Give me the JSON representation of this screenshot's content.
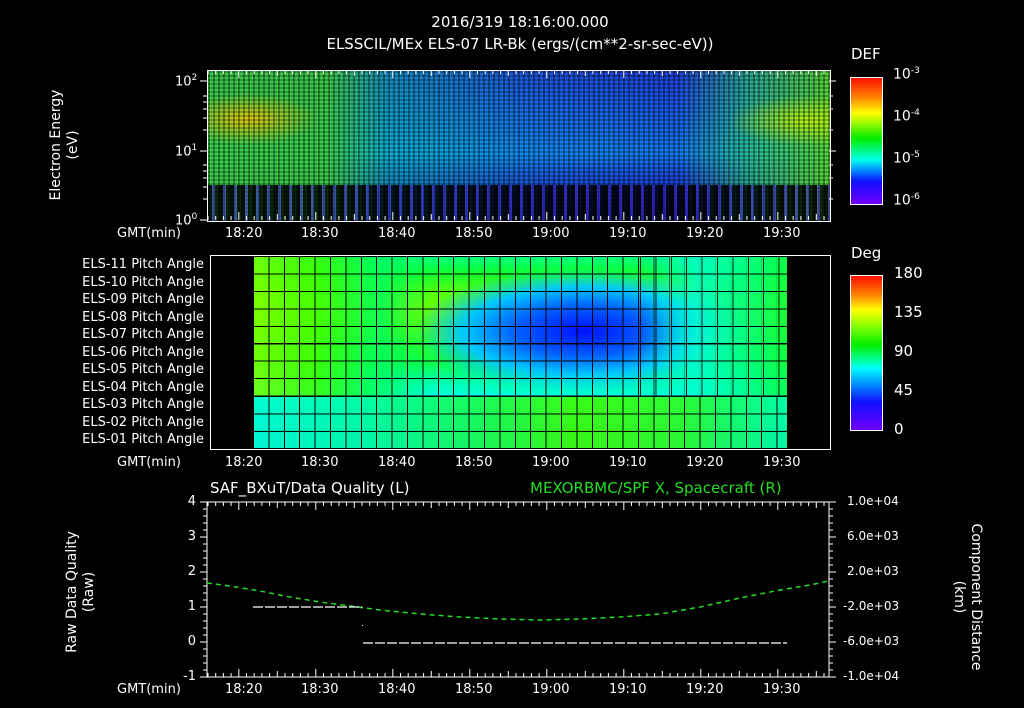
{
  "header": {
    "timestamp": "2016/319 18:16:00.000",
    "subtitle": "ELSSCIL/MEx ELS-07 LR-Bk  (ergs/(cm**2-sr-sec-eV))"
  },
  "panel1": {
    "ylabel_line1": "Electron Energy",
    "ylabel_line2": "(eV)",
    "yticks": [
      "10^0",
      "10^1",
      "10^2"
    ],
    "xlabel": "GMT(min)",
    "xticks": [
      "18:20",
      "18:30",
      "18:40",
      "18:50",
      "19:00",
      "19:10",
      "19:20",
      "19:30"
    ],
    "colorbar": {
      "title": "DEF",
      "ticks": [
        "10^-3",
        "10^-4",
        "10^-5",
        "10^-6"
      ]
    }
  },
  "panel2": {
    "rows": [
      "ELS-11 Pitch Angle",
      "ELS-10 Pitch Angle",
      "ELS-09 Pitch Angle",
      "ELS-08 Pitch Angle",
      "ELS-07 Pitch Angle",
      "ELS-06 Pitch Angle",
      "ELS-05 Pitch Angle",
      "ELS-04 Pitch Angle",
      "ELS-03 Pitch Angle",
      "ELS-02 Pitch Angle",
      "ELS-01 Pitch Angle"
    ],
    "xlabel": "GMT(min)",
    "xticks": [
      "18:20",
      "18:30",
      "18:40",
      "18:50",
      "19:00",
      "19:10",
      "19:20",
      "19:30"
    ],
    "colorbar": {
      "title": "Deg",
      "ticks": [
        "180",
        "135",
        "90",
        "45",
        "0"
      ]
    }
  },
  "panel3": {
    "title_left": "SAF_BXuT/Data Quality (L)",
    "title_right": "MEXORBMC/SPF X, Spacecraft (R)",
    "ylabel_left_line1": "Raw Data Quality",
    "ylabel_left_line2": "(Raw)",
    "ylabel_right_line1": "Component Distance",
    "ylabel_right_line2": "(km)",
    "yticks_left": [
      "4",
      "3",
      "2",
      "1",
      "0",
      "-1"
    ],
    "yticks_right": [
      "1.0e+04",
      "6.0e+03",
      "2.0e+03",
      "-2.0e+03",
      "-6.0e+03",
      "-1.0e+04"
    ],
    "xlabel": "GMT(min)",
    "xticks": [
      "18:20",
      "18:30",
      "18:40",
      "18:50",
      "19:00",
      "19:10",
      "19:20",
      "19:30"
    ],
    "series_color_right": "#22dd22",
    "series_color_left": "#ffffff"
  },
  "chart_data": [
    {
      "type": "heatmap",
      "title": "ELSSCIL/MEx ELS-07 LR-Bk (ergs/(cm**2-sr-sec-eV))",
      "xlabel": "GMT(min)",
      "ylabel": "Electron Energy (eV)",
      "x_range": [
        "18:16",
        "19:37"
      ],
      "ylim": [
        1,
        150
      ],
      "yscale": "log",
      "colorbar_label": "DEF",
      "colorbar_range": [
        1e-06,
        0.001
      ],
      "description": "High DEF (~1e-4) band 15-50 eV from 18:16-18:30 and 19:17-19:37; weaker cyan band 4-15 eV 18:30-19:17"
    },
    {
      "type": "heatmap",
      "title": "Pitch Angle",
      "xlabel": "GMT(min)",
      "categories": [
        "ELS-01",
        "ELS-02",
        "ELS-03",
        "ELS-04",
        "ELS-05",
        "ELS-06",
        "ELS-07",
        "ELS-08",
        "ELS-09",
        "ELS-10",
        "ELS-11"
      ],
      "x_range": [
        "18:22",
        "19:30"
      ],
      "colorbar_label": "Deg",
      "colorbar_range": [
        0,
        180
      ],
      "description": "Anodes ELS-06..ELS-09 reach ~15-25 deg near 19:00-19:05; ELS-01 ~60 deg at 18:22 rising to ~130 deg at 19:00"
    },
    {
      "type": "line",
      "title": "SAF_BXuT/Data Quality (L) ; MEXORBMC/SPF X, Spacecraft (R)",
      "xlabel": "GMT(min)",
      "ylabel": "Raw Data Quality (Raw)",
      "ylabel_right": "Component Distance (km)",
      "ylim": [
        -1,
        4
      ],
      "ylim_right": [
        -10000,
        10000
      ],
      "series": [
        {
          "name": "Data Quality (L)",
          "x": [
            "18:22",
            "18:35",
            "18:35",
            "19:30"
          ],
          "values": [
            1,
            1,
            0,
            0
          ]
        },
        {
          "name": "SPF X (R)",
          "x": [
            "18:16",
            "18:30",
            "18:40",
            "18:50",
            "19:00",
            "19:10",
            "19:20",
            "19:30",
            "19:37"
          ],
          "values": [
            200,
            -1000,
            -2200,
            -3000,
            -3300,
            -3100,
            -2000,
            -500,
            300
          ]
        }
      ]
    }
  ]
}
